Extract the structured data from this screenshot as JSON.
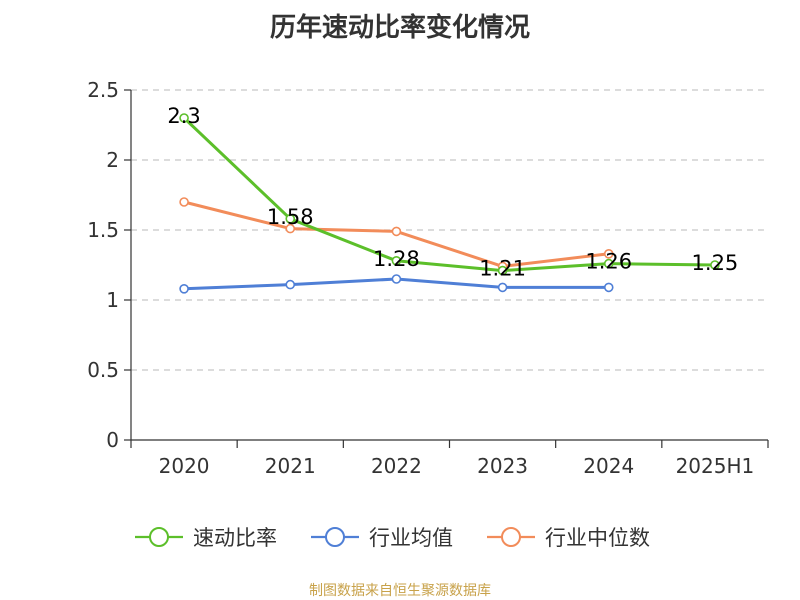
{
  "chart_data": {
    "type": "line",
    "title": "历年速动比率变化情况",
    "categories": [
      "2020",
      "2021",
      "2022",
      "2023",
      "2024",
      "2025H1"
    ],
    "ylim": [
      0,
      2.5
    ],
    "y_ticks": [
      "0",
      "0.5",
      "1",
      "1.5",
      "2",
      "2.5"
    ],
    "grid": true,
    "legend_position": "bottom",
    "series": [
      {
        "name": "速动比率",
        "color": "#5cbf2a",
        "values": [
          2.3,
          1.58,
          1.28,
          1.21,
          1.26,
          1.25
        ],
        "data_labels": [
          "2.3",
          "1.58",
          "1.28",
          "1.21",
          "1.26",
          "1.25"
        ]
      },
      {
        "name": "行业均值",
        "color": "#4f7fd6",
        "values": [
          1.08,
          1.11,
          1.15,
          1.09,
          1.09,
          null
        ]
      },
      {
        "name": "行业中位数",
        "color": "#f28c5a",
        "values": [
          1.7,
          1.51,
          1.49,
          1.24,
          1.33,
          null
        ]
      }
    ]
  },
  "source_text": "制图数据来自恒生聚源数据库"
}
